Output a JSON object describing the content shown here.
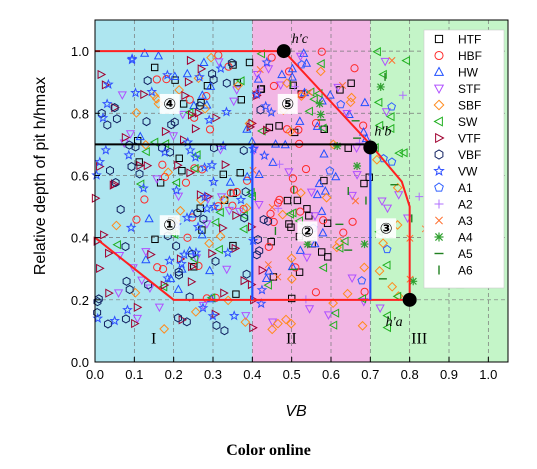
{
  "caption": "Color online",
  "chart_data": {
    "type": "scatter",
    "xlabel": "VB",
    "ylabel": "Relative depth of pit h/hmax",
    "xlim": [
      0.0,
      1.05
    ],
    "ylim": [
      0.0,
      1.1
    ],
    "x_ticks": [
      "0.0",
      "0.1",
      "0.2",
      "0.3",
      "0.4",
      "0.5",
      "0.6",
      "0.7",
      "0.8",
      "0.9",
      "1.0"
    ],
    "y_ticks": [
      "0.0",
      "0.2",
      "0.4",
      "0.6",
      "0.8",
      "1.0"
    ],
    "grid": true,
    "legend_position": "right",
    "regions": [
      {
        "label": "I",
        "x_range": [
          0.0,
          0.4
        ],
        "color": "#aee6f0"
      },
      {
        "label": "II",
        "x_range": [
          0.4,
          0.7
        ],
        "color": "#f2b6e4"
      },
      {
        "label": "III",
        "x_range": [
          0.7,
          1.05
        ],
        "color": "#c4f5c8"
      }
    ],
    "zones": [
      {
        "label": "①",
        "x": 0.19,
        "y": 0.44
      },
      {
        "label": "②",
        "x": 0.54,
        "y": 0.42
      },
      {
        "label": "③",
        "x": 0.74,
        "y": 0.43
      },
      {
        "label": "④",
        "x": 0.19,
        "y": 0.83
      },
      {
        "label": "⑤",
        "x": 0.49,
        "y": 0.83
      }
    ],
    "boundary": [
      [
        0.0,
        1.0
      ],
      [
        0.48,
        1.0
      ],
      [
        0.7,
        0.7
      ],
      [
        0.78,
        0.58
      ],
      [
        0.8,
        0.5
      ],
      [
        0.8,
        0.2
      ],
      [
        0.2,
        0.2
      ],
      [
        0.0,
        0.4
      ]
    ],
    "divider_line": {
      "x": [
        0.0,
        0.7
      ],
      "y": 0.7
    },
    "vertical_lines": [
      0.4,
      0.7
    ],
    "key_points": [
      {
        "name": "h'c",
        "x": 0.48,
        "y": 1.0
      },
      {
        "name": "h'b",
        "x": 0.7,
        "y": 0.69
      },
      {
        "name": "h'a",
        "x": 0.8,
        "y": 0.2
      }
    ],
    "series": [
      {
        "name": "HTF",
        "marker": "square",
        "color": "#000000"
      },
      {
        "name": "HBF",
        "marker": "circle",
        "color": "#ff2a2a"
      },
      {
        "name": "HW",
        "marker": "triangle-up",
        "color": "#2050ff"
      },
      {
        "name": "STF",
        "marker": "triangle-down",
        "color": "#b050ff"
      },
      {
        "name": "SBF",
        "marker": "diamond",
        "color": "#ff8a1c"
      },
      {
        "name": "SW",
        "marker": "triangle-left",
        "color": "#20b020"
      },
      {
        "name": "VTF",
        "marker": "triangle-right",
        "color": "#a00030"
      },
      {
        "name": "VBF",
        "marker": "hexagon",
        "color": "#102060"
      },
      {
        "name": "VW",
        "marker": "star",
        "color": "#3050ff"
      },
      {
        "name": "A1",
        "marker": "pentagon",
        "color": "#3060ff"
      },
      {
        "name": "A2",
        "marker": "plus",
        "color": "#b070ff"
      },
      {
        "name": "A3",
        "marker": "cross",
        "color": "#ff7030"
      },
      {
        "name": "A4",
        "marker": "asterisk",
        "color": "#30a030"
      },
      {
        "name": "A5",
        "marker": "dash",
        "color": "#208020"
      },
      {
        "name": "A6",
        "marker": "vbar",
        "color": "#208020"
      }
    ]
  }
}
